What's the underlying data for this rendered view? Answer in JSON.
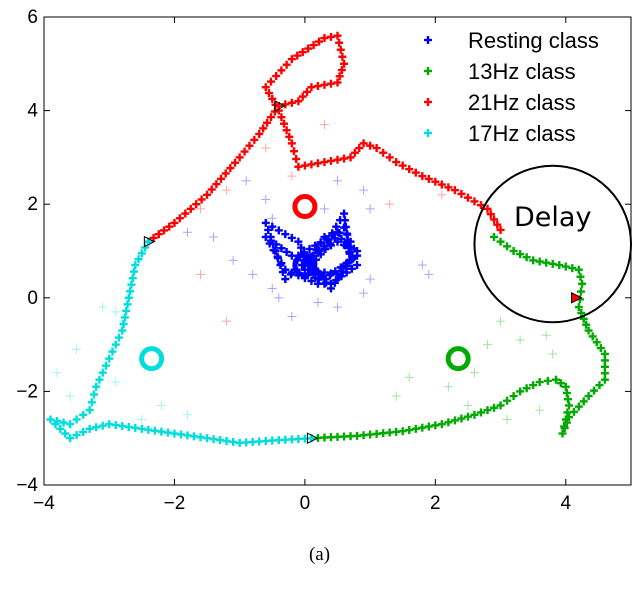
{
  "caption": "(a)",
  "chart_data": {
    "type": "scatter",
    "xlim": [
      -4,
      5
    ],
    "ylim": [
      -4,
      6
    ],
    "x_ticks": [
      -4,
      -2,
      0,
      2,
      4
    ],
    "y_ticks": [
      -4,
      -2,
      0,
      2,
      4,
      6
    ],
    "grid": false,
    "legend_position": "top-right",
    "series": [
      {
        "name": "Resting class",
        "color": "#0000ff",
        "trajectory": [
          [
            0.3,
            0.3
          ],
          [
            -0.2,
            0.9
          ],
          [
            -0.6,
            1.3
          ],
          [
            -0.3,
            0.6
          ],
          [
            0.2,
            0.3
          ],
          [
            -0.1,
            1.2
          ],
          [
            -0.6,
            1.6
          ],
          [
            -0.3,
            0.4
          ],
          [
            0.3,
            1.1
          ],
          [
            0.6,
            1.8
          ],
          [
            0.7,
            0.8
          ],
          [
            0.4,
            0.2
          ],
          [
            0.1,
            0.7
          ],
          [
            0.6,
            1.5
          ],
          [
            0.8,
            0.9
          ],
          [
            0.3,
            0.4
          ],
          [
            -0.1,
            0.9
          ],
          [
            0.5,
            1.4
          ],
          [
            0.8,
            0.7
          ],
          [
            0.4,
            0.3
          ],
          [
            0.0,
            0.8
          ],
          [
            0.5,
            1.2
          ],
          [
            0.8,
            1.0
          ],
          [
            0.5,
            0.5
          ],
          [
            0.0,
            0.6
          ],
          [
            0.3,
            1.3
          ]
        ],
        "scatter": [
          [
            -0.9,
            2.5
          ],
          [
            -0.6,
            2.1
          ],
          [
            0.5,
            2.5
          ],
          [
            0.9,
            2.3
          ],
          [
            1.0,
            1.9
          ],
          [
            -1.4,
            1.3
          ],
          [
            -1.1,
            0.8
          ],
          [
            -0.8,
            0.5
          ],
          [
            -0.5,
            0.2
          ],
          [
            0.2,
            -0.1
          ],
          [
            0.5,
            -0.2
          ],
          [
            0.9,
            0.1
          ],
          [
            -0.2,
            -0.4
          ],
          [
            -1.8,
            1.4
          ],
          [
            1.8,
            0.7
          ],
          [
            1.9,
            0.5
          ],
          [
            -0.5,
            1.7
          ],
          [
            0.3,
            1.9
          ],
          [
            -0.4,
            0.0
          ],
          [
            1.0,
            0.4
          ]
        ],
        "class_center": [
          0,
          0.7
        ]
      },
      {
        "name": "13Hz class",
        "color": "#00aa00",
        "trajectory": [
          [
            0.1,
            -3.0
          ],
          [
            0.8,
            -2.95
          ],
          [
            1.5,
            -2.85
          ],
          [
            2.1,
            -2.7
          ],
          [
            2.6,
            -2.5
          ],
          [
            3.0,
            -2.3
          ],
          [
            3.3,
            -2.0
          ],
          [
            3.6,
            -1.8
          ],
          [
            3.85,
            -1.75
          ],
          [
            4.0,
            -1.9
          ],
          [
            4.05,
            -2.3
          ],
          [
            3.95,
            -2.9
          ],
          [
            4.05,
            -2.55
          ],
          [
            4.35,
            -2.1
          ],
          [
            4.6,
            -1.75
          ],
          [
            4.6,
            -1.2
          ],
          [
            4.35,
            -0.7
          ],
          [
            4.2,
            -0.2
          ],
          [
            4.25,
            0.3
          ],
          [
            4.2,
            0.6
          ],
          [
            3.9,
            0.7
          ],
          [
            3.5,
            0.8
          ],
          [
            3.2,
            1.0
          ],
          [
            3.0,
            1.2
          ],
          [
            2.9,
            1.3
          ]
        ],
        "scatter": [
          [
            3.0,
            -0.5
          ],
          [
            3.3,
            -0.9
          ],
          [
            3.7,
            -0.8
          ],
          [
            2.6,
            -1.6
          ],
          [
            2.2,
            -1.9
          ],
          [
            1.6,
            -1.7
          ],
          [
            1.4,
            -2.1
          ],
          [
            3.6,
            -2.4
          ],
          [
            3.1,
            -2.6
          ],
          [
            2.5,
            -2.3
          ],
          [
            3.8,
            -1.2
          ],
          [
            2.8,
            -1.0
          ]
        ],
        "class_center": [
          2.35,
          -1.3
        ]
      },
      {
        "name": "21Hz class",
        "color": "#ff0000",
        "trajectory": [
          [
            -2.4,
            1.2
          ],
          [
            -2.0,
            1.6
          ],
          [
            -1.5,
            2.2
          ],
          [
            -1.0,
            3.0
          ],
          [
            -0.7,
            3.5
          ],
          [
            -0.4,
            4.1
          ],
          [
            -0.1,
            4.2
          ],
          [
            0.1,
            4.5
          ],
          [
            0.5,
            4.6
          ],
          [
            0.6,
            5.0
          ],
          [
            0.5,
            5.6
          ],
          [
            0.3,
            5.55
          ],
          [
            -0.2,
            5.1
          ],
          [
            -0.6,
            4.5
          ],
          [
            -0.4,
            4.0
          ],
          [
            -0.2,
            3.3
          ],
          [
            -0.1,
            2.8
          ],
          [
            0.7,
            3.0
          ],
          [
            0.9,
            3.3
          ],
          [
            1.1,
            3.2
          ],
          [
            1.4,
            2.9
          ],
          [
            1.8,
            2.6
          ],
          [
            2.3,
            2.3
          ],
          [
            2.8,
            1.9
          ],
          [
            3.0,
            1.45
          ]
        ],
        "marker_points": [
          [
            4.15,
            0.0
          ]
        ],
        "scatter": [
          [
            0.3,
            3.7
          ],
          [
            -0.6,
            3.2
          ],
          [
            -1.2,
            2.3
          ],
          [
            -1.6,
            1.9
          ],
          [
            -1.6,
            0.5
          ],
          [
            -1.2,
            -0.5
          ],
          [
            -0.2,
            2.6
          ],
          [
            1.3,
            2.0
          ],
          [
            2.1,
            2.2
          ]
        ],
        "class_center": [
          0,
          1.95
        ]
      },
      {
        "name": "17Hz class",
        "color": "#00dddd",
        "trajectory": [
          [
            -2.4,
            1.2
          ],
          [
            -2.6,
            0.7
          ],
          [
            -2.7,
            0.0
          ],
          [
            -2.8,
            -0.7
          ],
          [
            -3.0,
            -1.3
          ],
          [
            -3.2,
            -1.9
          ],
          [
            -3.3,
            -2.4
          ],
          [
            -3.6,
            -2.7
          ],
          [
            -3.9,
            -2.6
          ],
          [
            -3.6,
            -3.0
          ],
          [
            -3.3,
            -2.8
          ],
          [
            -3.0,
            -2.7
          ],
          [
            -2.5,
            -2.8
          ],
          [
            -2.0,
            -2.9
          ],
          [
            -1.5,
            -3.0
          ],
          [
            -1.0,
            -3.1
          ],
          [
            -0.5,
            -3.05
          ],
          [
            0.1,
            -3.0
          ]
        ],
        "scatter": [
          [
            -3.1,
            -0.2
          ],
          [
            -2.8,
            -0.5
          ],
          [
            -3.5,
            -1.1
          ],
          [
            -3.8,
            -1.6
          ],
          [
            -2.9,
            -1.8
          ],
          [
            -2.2,
            -2.3
          ],
          [
            -2.5,
            -2.6
          ],
          [
            -3.6,
            -2.1
          ],
          [
            -1.8,
            -2.5
          ],
          [
            -2.9,
            -0.3
          ]
        ],
        "class_center": [
          -2.35,
          -1.3
        ]
      }
    ],
    "annotation": {
      "label": "Delay",
      "circle_center": [
        3.8,
        1.15
      ],
      "circle_radius": 1.2
    }
  }
}
